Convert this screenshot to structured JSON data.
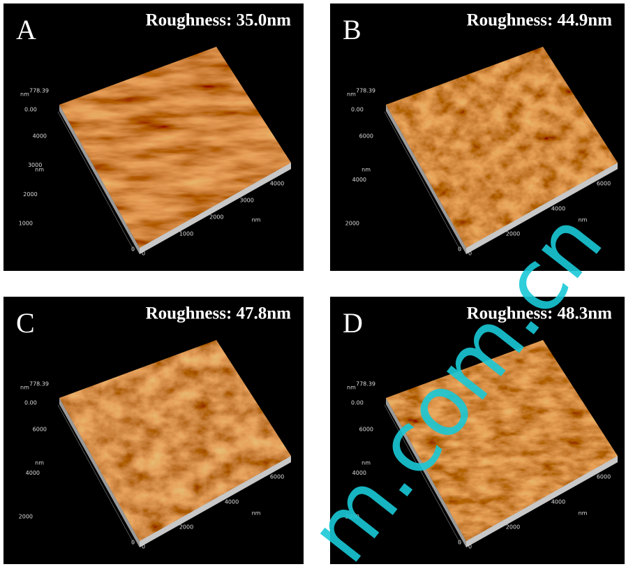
{
  "panels": [
    {
      "label": "A",
      "title": "Roughness: 35.0nm",
      "z_unit": "nm",
      "z_max": "778.39",
      "z_min": "0.00",
      "y_unit": "nm",
      "y_ticks": [
        "4000",
        "3000",
        "2000",
        "1000"
      ],
      "x_unit": "nm",
      "x_ticks": [
        "1000",
        "2000",
        "3000",
        "4000"
      ],
      "origin": [
        "0",
        "0"
      ]
    },
    {
      "label": "B",
      "title": "Roughness: 44.9nm",
      "z_unit": "nm",
      "z_max": "778.39",
      "z_min": "0.00",
      "y_unit": "nm",
      "y_ticks": [
        "6000",
        "4000",
        "2000"
      ],
      "x_unit": "nm",
      "x_ticks": [
        "2000",
        "4000",
        "6000"
      ],
      "origin": [
        "0",
        "0"
      ]
    },
    {
      "label": "C",
      "title": "Roughness: 47.8nm",
      "z_unit": "nm",
      "z_max": "778.39",
      "z_min": "0.00",
      "y_unit": "nm",
      "y_ticks": [
        "6000",
        "4000",
        "2000"
      ],
      "x_unit": "nm",
      "x_ticks": [
        "2000",
        "4000",
        "6000"
      ],
      "origin": [
        "0",
        "0"
      ]
    },
    {
      "label": "D",
      "title": "Roughness: 48.3nm",
      "z_unit": "nm",
      "z_max": "778.39",
      "z_min": "0.00",
      "y_unit": "nm",
      "y_ticks": [
        "6000",
        "4000",
        "2000"
      ],
      "x_unit": "nm",
      "x_ticks": [
        "2000",
        "4000",
        "6000"
      ],
      "origin": [
        "0",
        "0"
      ]
    }
  ],
  "watermark": "m.com.cn"
}
